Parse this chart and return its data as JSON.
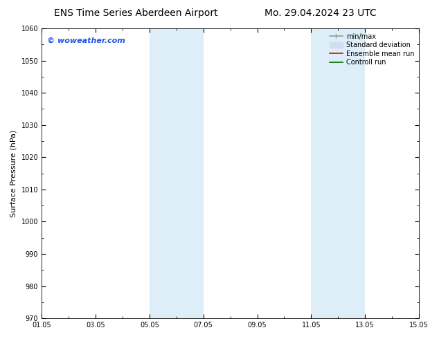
{
  "title_left": "ENS Time Series Aberdeen Airport",
  "title_right": "Mo. 29.04.2024 23 UTC",
  "ylabel": "Surface Pressure (hPa)",
  "ylim": [
    970,
    1060
  ],
  "yticks": [
    970,
    980,
    990,
    1000,
    1010,
    1020,
    1030,
    1040,
    1050,
    1060
  ],
  "xlim_num": [
    0,
    14
  ],
  "xtick_labels": [
    "01.05",
    "03.05",
    "05.05",
    "07.05",
    "09.05",
    "11.05",
    "13.05",
    "15.05"
  ],
  "xtick_positions": [
    0,
    2,
    4,
    6,
    8,
    10,
    12,
    14
  ],
  "shaded_bands": [
    {
      "x_start": 4.0,
      "x_end": 6.0,
      "color": "#ddeef8"
    },
    {
      "x_start": 10.0,
      "x_end": 12.0,
      "color": "#ddeef8"
    }
  ],
  "bg_color": "#ffffff",
  "plot_bg_color": "#ffffff",
  "watermark_text": "© woweather.com",
  "watermark_color": "#1a56e8",
  "legend_entries": [
    {
      "label": "min/max",
      "color": "#999999",
      "lw": 1.2
    },
    {
      "label": "Standard deviation",
      "color": "#cde0f0",
      "lw": 5
    },
    {
      "label": "Ensemble mean run",
      "color": "#ee0000",
      "lw": 1.2
    },
    {
      "label": "Controll run",
      "color": "#006600",
      "lw": 1.2
    }
  ],
  "title_fontsize": 10,
  "tick_fontsize": 7,
  "label_fontsize": 8,
  "watermark_fontsize": 8,
  "legend_fontsize": 7
}
